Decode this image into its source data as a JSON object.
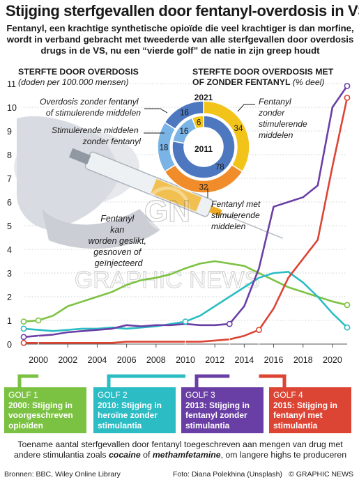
{
  "title": "Stijging sterfgevallen door fentanyl-overdosis in VS",
  "subtitle": "Fentanyl, een krachtige synthetische opioïde die veel krachtiger is dan morfine, wordt in verband gebracht met tweederde van alle sterfgevallen door overdosis drugs in de VS, nu een “vierde golf” de natie in zijn greep houdt",
  "left_heading": "STERFTE DOOR OVERDOSIS",
  "left_unit": "(doden per 100.000 mensen)",
  "right_heading_1": "STERFTE DOOR OVERDOSIS MET",
  "right_heading_2": "OF ZONDER FENTANYL",
  "right_unit": "(% deel)",
  "photo_caption": "Fentanyl kan worden geslikt, gesnoven of geïnjecteerd",
  "watermark_1": "GN",
  "watermark_2": "GRAPHIC NEWS",
  "colors": {
    "green": "#7cc242",
    "teal": "#2bbcc4",
    "purple": "#6a3fa5",
    "red": "#dc4434",
    "pie_dark": "#4d78c0",
    "pie_light": "#7ab3e5",
    "pie_yellow": "#f2c319",
    "pie_orange": "#f08c29"
  },
  "chart_data": [
    {
      "type": "line",
      "title": "STERFTE DOOR OVERDOSIS",
      "ylabel": "(doden per 100.000 mensen)",
      "xlim": [
        1999,
        2021
      ],
      "ylim": [
        0,
        11
      ],
      "y_ticks": [
        "0",
        "1",
        "2",
        "3",
        "4",
        "5",
        "6",
        "7",
        "8",
        "9",
        "10",
        "11"
      ],
      "x_ticks": [
        "2000",
        "2002",
        "2004",
        "2006",
        "2008",
        "2010",
        "2012",
        "2014",
        "2016",
        "2018",
        "2020"
      ],
      "grid": true,
      "x": [
        1999,
        2000,
        2001,
        2002,
        2003,
        2004,
        2005,
        2006,
        2007,
        2008,
        2009,
        2010,
        2011,
        2012,
        2013,
        2014,
        2015,
        2016,
        2017,
        2018,
        2019,
        2020,
        2021
      ],
      "series": [
        {
          "color": "#7cc242",
          "values": [
            0.95,
            1.0,
            1.2,
            1.6,
            1.8,
            2.0,
            2.2,
            2.5,
            2.7,
            2.8,
            2.95,
            3.2,
            3.4,
            3.5,
            3.4,
            3.3,
            3.0,
            2.7,
            2.4,
            2.2,
            2.0,
            1.8,
            1.65
          ]
        },
        {
          "color": "#2bbcc4",
          "values": [
            0.65,
            0.6,
            0.55,
            0.6,
            0.65,
            0.65,
            0.7,
            0.65,
            0.7,
            0.75,
            0.85,
            0.95,
            1.2,
            1.6,
            2.0,
            2.4,
            2.8,
            3.0,
            3.05,
            2.6,
            2.0,
            1.3,
            0.7
          ]
        },
        {
          "color": "#6a3fa5",
          "values": [
            0.3,
            0.35,
            0.4,
            0.5,
            0.55,
            0.6,
            0.65,
            0.8,
            0.75,
            0.8,
            0.8,
            0.85,
            0.8,
            0.8,
            0.85,
            1.6,
            3.2,
            5.8,
            6.0,
            6.2,
            6.7,
            10.0,
            10.9
          ]
        },
        {
          "color": "#dc4434",
          "values": [
            0.05,
            0.05,
            0.05,
            0.05,
            0.05,
            0.05,
            0.05,
            0.1,
            0.1,
            0.1,
            0.1,
            0.1,
            0.1,
            0.15,
            0.2,
            0.35,
            0.6,
            1.5,
            2.8,
            3.6,
            4.4,
            7.5,
            10.4
          ]
        }
      ]
    },
    {
      "type": "pie",
      "title": "STERFTE DOOR OVERDOSIS MET OF ZONDER FENTANYL (% deel)",
      "rings": [
        {
          "year": "2011",
          "ring": "inner",
          "slices": [
            {
              "label": "Overdosis zonder fentanyl of stimulerende middelen",
              "value": 78,
              "color": "#4d78c0"
            },
            {
              "label": "Stimulerende middelen zonder fentanyl",
              "value": 16,
              "color": "#7ab3e5"
            },
            {
              "label": "Fentanyl zonder stimulerende middelen",
              "value": 6,
              "color": "#f2c319"
            }
          ]
        },
        {
          "year": "2021",
          "ring": "outer",
          "slices": [
            {
              "label": "Fentanyl zonder stimulerende middelen",
              "value": 34,
              "color": "#f2c319"
            },
            {
              "label": "Fentanyl met stimulerende middelen",
              "value": 32,
              "color": "#f08c29"
            },
            {
              "label": "Stimulerende middelen zonder fentanyl",
              "value": 18,
              "color": "#7ab3e5"
            },
            {
              "label": "Overdosis zonder fentanyl of stimulerende middelen",
              "value": 16,
              "color": "#4d78c0"
            }
          ]
        }
      ],
      "center_label": "2011",
      "top_label": "2021",
      "annotations": [
        "Overdosis zonder fentanyl of stimulerende middelen",
        "Stimulerende middelen zonder fentanyl",
        "Fentanyl zonder stimulerende middelen",
        "Fentanyl met stimulerende middelen"
      ]
    }
  ],
  "waves": [
    {
      "title": "GOLF 1",
      "desc": "2000: Stijging in voorgeschreven opioïden",
      "color": "#7cc242",
      "year": 2000
    },
    {
      "title": "GOLF 2",
      "desc": "2010: Stijging in heroïne zonder stimulantia",
      "color": "#2bbcc4",
      "year": 2010
    },
    {
      "title": "GOLF 3",
      "desc": "2013: Stijging in fentanyl zonder stimulantia",
      "color": "#6a3fa5",
      "year": 2013
    },
    {
      "title": "GOLF 4",
      "desc": "2015: Stijging in fentanyl met stimulantia",
      "color": "#dc4434",
      "year": 2015
    }
  ],
  "footnote_1": "Toename aantal sterfgevallen door fentanyl toegeschreven aan mengen van drug met andere stimulantia zoals ",
  "footnote_cocaine": "cocaine",
  "footnote_2": " of ",
  "footnote_meth": "methamfetamine",
  "footnote_3": ", om langere highs te produceren",
  "sources": "Bronnen: BBC, Wiley Online Library",
  "photo_credit": "Foto: Diana Polekhina (Unsplash)",
  "copyright": "© GRAPHIC NEWS"
}
